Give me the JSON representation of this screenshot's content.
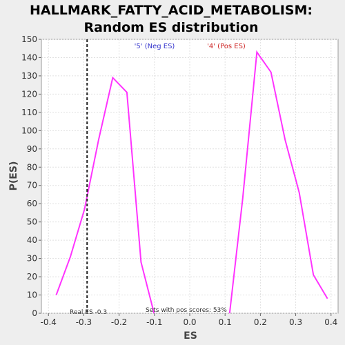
{
  "chart_data": {
    "type": "line",
    "title_line1": "HALLMARK_FATTY_ACID_METABOLISM:",
    "title_line2": "Random ES distribution",
    "xlabel": "ES",
    "ylabel": "P(ES)",
    "xlim": [
      -0.42,
      0.42
    ],
    "ylim": [
      0,
      150
    ],
    "x_ticks": [
      "-0.4",
      "-0.3",
      "-0.2",
      "-0.1",
      "0.0",
      "0.1",
      "0.2",
      "0.3",
      "0.4"
    ],
    "x_tick_values": [
      -0.4,
      -0.3,
      -0.2,
      -0.1,
      0.0,
      0.1,
      0.2,
      0.3,
      0.4
    ],
    "y_ticks": [
      "0",
      "10",
      "20",
      "30",
      "40",
      "50",
      "60",
      "70",
      "80",
      "90",
      "100",
      "110",
      "120",
      "130",
      "140",
      "150"
    ],
    "y_tick_values": [
      0,
      10,
      20,
      30,
      40,
      50,
      60,
      70,
      80,
      90,
      100,
      110,
      120,
      130,
      140,
      150
    ],
    "grid": true,
    "line_color": "#ff33ff",
    "series": [
      {
        "points": [
          {
            "x": -0.378,
            "y": 10
          },
          {
            "x": -0.338,
            "y": 31
          },
          {
            "x": -0.298,
            "y": 57
          },
          {
            "x": -0.258,
            "y": 95
          },
          {
            "x": -0.218,
            "y": 129
          },
          {
            "x": -0.178,
            "y": 121
          },
          {
            "x": -0.138,
            "y": 28
          },
          {
            "x": -0.101,
            "y": 0
          }
        ]
      },
      {
        "points": [
          {
            "x": 0.113,
            "y": 0
          },
          {
            "x": 0.15,
            "y": 63
          },
          {
            "x": 0.19,
            "y": 143
          },
          {
            "x": 0.23,
            "y": 132
          },
          {
            "x": 0.27,
            "y": 95
          },
          {
            "x": 0.31,
            "y": 66
          },
          {
            "x": 0.35,
            "y": 21
          },
          {
            "x": 0.39,
            "y": 8
          }
        ]
      }
    ],
    "real_es": -0.2906,
    "real_es_label": "Real ES -0.3",
    "neg_legend": "'5' (Neg ES)",
    "neg_legend_color": "#3333cc",
    "pos_legend": "'4' (Pos ES)",
    "pos_legend_color": "#cc2222",
    "pos_scores_label": "Sets with pos scores: 53%"
  }
}
